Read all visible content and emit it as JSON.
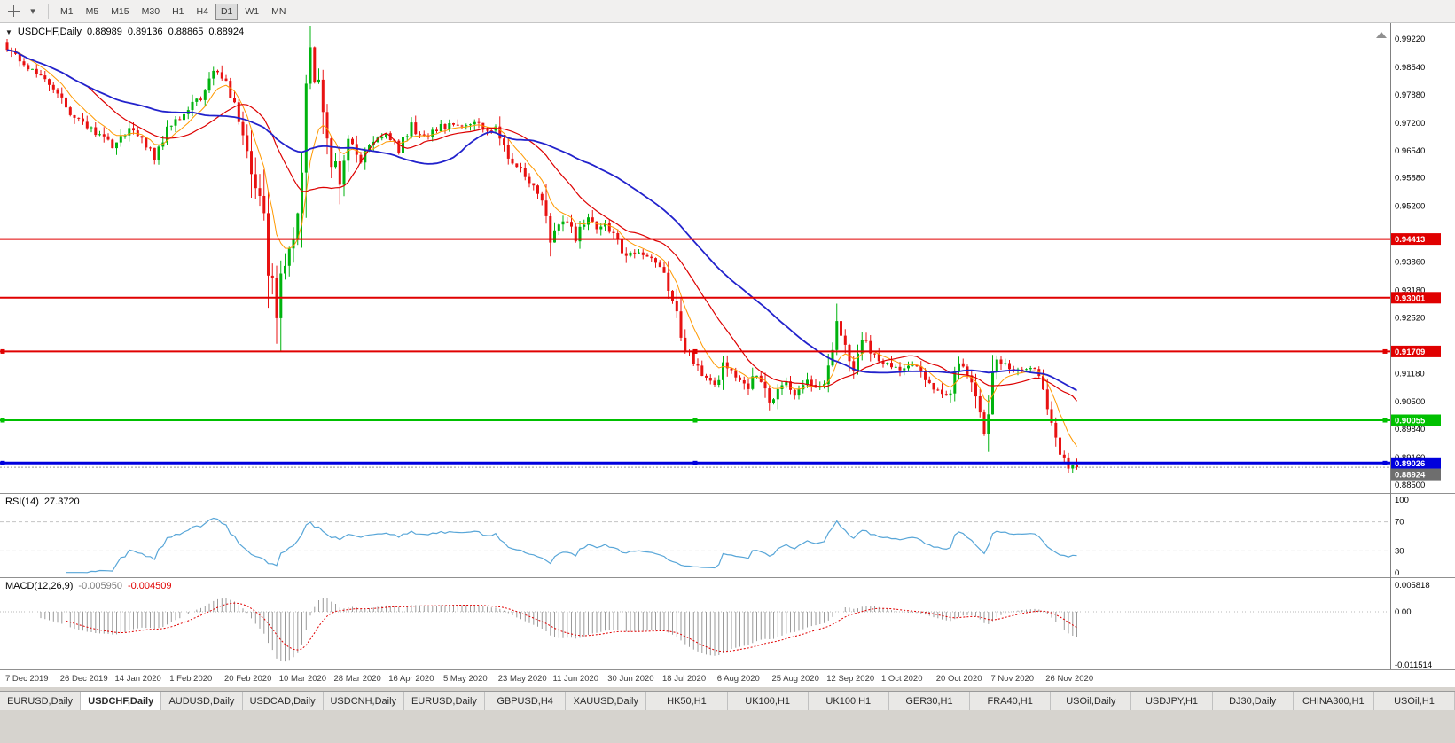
{
  "toolbar": {
    "icons": [
      {
        "name": "crosshair-icon"
      },
      {
        "name": "dropdown-arrow-icon",
        "glyph": "▾"
      }
    ],
    "timeframes": [
      {
        "label": "M1",
        "active": false
      },
      {
        "label": "M5",
        "active": false
      },
      {
        "label": "M15",
        "active": false
      },
      {
        "label": "M30",
        "active": false
      },
      {
        "label": "H1",
        "active": false
      },
      {
        "label": "H4",
        "active": false
      },
      {
        "label": "D1",
        "active": true
      },
      {
        "label": "W1",
        "active": false
      },
      {
        "label": "MN",
        "active": false
      }
    ]
  },
  "main_chart": {
    "collapse_icon": "▼",
    "scroll_icon": "▲",
    "title": {
      "symbol": "USDCHF,Daily",
      "open": "0.88989",
      "high": "0.89136",
      "low": "0.88865",
      "close": "0.88924"
    },
    "axis_ticks": [
      "0.99220",
      "0.98540",
      "0.97880",
      "0.97200",
      "0.96540",
      "0.95880",
      "0.95200",
      "0.93860",
      "0.93180",
      "0.92520",
      "0.91180",
      "0.90500",
      "0.89840",
      "0.89160",
      "0.88500"
    ],
    "current_badge": {
      "label": "0.88924",
      "color": "#6e6e6e"
    }
  },
  "rsi_panel": {
    "label": "RSI(14)",
    "value": "27.3720"
  },
  "macd_panel": {
    "label": "MACD(12,26,9)",
    "value1": "-0.005950",
    "value2": "-0.004509"
  },
  "chart_data": {
    "type": "candlestick",
    "symbol": "USDCHF",
    "timeframe": "Daily",
    "current_ohlc": {
      "open": 0.88989,
      "high": 0.89136,
      "low": 0.88865,
      "close": 0.88924
    },
    "x_axis_dates": [
      "7 Dec 2019",
      "26 Dec 2019",
      "14 Jan 2020",
      "1 Feb 2020",
      "20 Feb 2020",
      "10 Mar 2020",
      "28 Mar 2020",
      "16 Apr 2020",
      "5 May 2020",
      "23 May 2020",
      "11 Jun 2020",
      "30 Jun 2020",
      "18 Jul 2020",
      "6 Aug 2020",
      "25 Aug 2020",
      "12 Sep 2020",
      "1 Oct 2020",
      "20 Oct 2020",
      "7 Nov 2020",
      "26 Nov 2020"
    ],
    "candles_per_label": 13,
    "price_path": [
      [
        0,
        0.9915
      ],
      [
        3,
        0.9878
      ],
      [
        6,
        0.9852
      ],
      [
        9,
        0.9838
      ],
      [
        13,
        0.9792
      ],
      [
        17,
        0.9732
      ],
      [
        21,
        0.9705
      ],
      [
        26,
        0.9668
      ],
      [
        30,
        0.9706
      ],
      [
        33,
        0.9682
      ],
      [
        36,
        0.9638
      ],
      [
        39,
        0.9705
      ],
      [
        43,
        0.9745
      ],
      [
        47,
        0.9782
      ],
      [
        50,
        0.984
      ],
      [
        52,
        0.9832
      ],
      [
        55,
        0.9775
      ],
      [
        58,
        0.9645
      ],
      [
        61,
        0.9525
      ],
      [
        64,
        0.9335
      ],
      [
        65,
        0.9255
      ],
      [
        67,
        0.939
      ],
      [
        69,
        0.9465
      ],
      [
        71,
        0.963
      ],
      [
        72,
        0.9825
      ],
      [
        73,
        0.9895
      ],
      [
        74,
        0.9845
      ],
      [
        76,
        0.9762
      ],
      [
        78,
        0.9645
      ],
      [
        80,
        0.9585
      ],
      [
        82,
        0.9678
      ],
      [
        85,
        0.9628
      ],
      [
        88,
        0.9678
      ],
      [
        91,
        0.969
      ],
      [
        94,
        0.9657
      ],
      [
        97,
        0.9713
      ],
      [
        100,
        0.9682
      ],
      [
        104,
        0.971
      ],
      [
        108,
        0.972
      ],
      [
        112,
        0.9724
      ],
      [
        115,
        0.9701
      ],
      [
        117,
        0.9706
      ],
      [
        120,
        0.9642
      ],
      [
        123,
        0.9606
      ],
      [
        126,
        0.9572
      ],
      [
        128,
        0.9522
      ],
      [
        130,
        0.9432
      ],
      [
        133,
        0.9494
      ],
      [
        136,
        0.9442
      ],
      [
        139,
        0.9494
      ],
      [
        141,
        0.9466
      ],
      [
        143,
        0.948
      ],
      [
        146,
        0.9441
      ],
      [
        148,
        0.9396
      ],
      [
        151,
        0.9416
      ],
      [
        154,
        0.9391
      ],
      [
        156,
        0.9381
      ],
      [
        158,
        0.9312
      ],
      [
        160,
        0.9252
      ],
      [
        162,
        0.9182
      ],
      [
        164,
        0.9152
      ],
      [
        166,
        0.9116
      ],
      [
        169,
        0.9096
      ],
      [
        171,
        0.9131
      ],
      [
        174,
        0.9111
      ],
      [
        177,
        0.9086
      ],
      [
        179,
        0.9121
      ],
      [
        182,
        0.9041
      ],
      [
        184,
        0.9086
      ],
      [
        186,
        0.9106
      ],
      [
        188,
        0.9061
      ],
      [
        191,
        0.9101
      ],
      [
        193,
        0.9081
      ],
      [
        195,
        0.9091
      ],
      [
        197,
        0.9181
      ],
      [
        198,
        0.9246
      ],
      [
        200,
        0.9171
      ],
      [
        202,
        0.9131
      ],
      [
        204,
        0.9201
      ],
      [
        206,
        0.9171
      ],
      [
        208,
        0.9156
      ],
      [
        211,
        0.9131
      ],
      [
        214,
        0.9126
      ],
      [
        217,
        0.9141
      ],
      [
        219,
        0.9111
      ],
      [
        221,
        0.9086
      ],
      [
        223,
        0.9061
      ],
      [
        225,
        0.9076
      ],
      [
        227,
        0.9146
      ],
      [
        229,
        0.9116
      ],
      [
        231,
        0.9061
      ],
      [
        233,
        0.8986
      ],
      [
        234,
        0.9041
      ],
      [
        236,
        0.9151
      ],
      [
        238,
        0.9141
      ],
      [
        239,
        0.9136
      ],
      [
        242,
        0.9121
      ],
      [
        244,
        0.9136
      ],
      [
        246,
        0.9111
      ],
      [
        247,
        0.9081
      ],
      [
        249,
        0.9011
      ],
      [
        251,
        0.8921
      ],
      [
        253,
        0.8896
      ],
      [
        254,
        0.8892
      ],
      [
        255,
        0.8892
      ]
    ],
    "special_points": {
      "0": {
        "high": 0.9922
      },
      "65": {
        "low": 0.9172
      },
      "73": {
        "high": 0.9904
      }
    },
    "hlines": [
      {
        "price": 0.94413,
        "label": "0.94413",
        "color": "#e00000",
        "width": 2,
        "selected": false
      },
      {
        "price": 0.93001,
        "label": "0.93001",
        "color": "#e00000",
        "width": 2,
        "selected": false
      },
      {
        "price": 0.91709,
        "label": "0.91709",
        "color": "#e00000",
        "width": 2,
        "selected": true
      },
      {
        "price": 0.90055,
        "label": "0.90055",
        "color": "#00c000",
        "width": 2,
        "selected": true
      },
      {
        "price": 0.89026,
        "label": "0.89026",
        "color": "#0000dd",
        "width": 3,
        "selected": true
      }
    ],
    "moving_averages": [
      {
        "period": 8,
        "type": "ema",
        "color": "#ff9900",
        "width": 1
      },
      {
        "period": 20,
        "type": "sma",
        "color": "#dd0000",
        "width": 1.2
      },
      {
        "period": 45,
        "type": "sma",
        "color": "#2222cc",
        "width": 1.8
      }
    ],
    "rsi": {
      "period": 14,
      "current": 27.372,
      "levels": [
        100,
        70,
        30,
        0
      ]
    },
    "macd": {
      "fast": 12,
      "slow": 26,
      "signal": 9,
      "current": [
        -0.00595,
        -0.004509
      ],
      "axis_labels": [
        "0.005818",
        "0.00",
        "-0.011514"
      ]
    }
  },
  "tabs": [
    {
      "label": "EURUSD,Daily",
      "active": false
    },
    {
      "label": "USDCHF,Daily",
      "active": true
    },
    {
      "label": "AUDUSD,Daily",
      "active": false
    },
    {
      "label": "USDCAD,Daily",
      "active": false
    },
    {
      "label": "USDCNH,Daily",
      "active": false
    },
    {
      "label": "EURUSD,Daily",
      "active": false
    },
    {
      "label": "GBPUSD,H4",
      "active": false
    },
    {
      "label": "XAUUSD,Daily",
      "active": false
    },
    {
      "label": "HK50,H1",
      "active": false
    },
    {
      "label": "UK100,H1",
      "active": false
    },
    {
      "label": "UK100,H1",
      "active": false
    },
    {
      "label": "GER30,H1",
      "active": false
    },
    {
      "label": "FRA40,H1",
      "active": false
    },
    {
      "label": "USOil,Daily",
      "active": false
    },
    {
      "label": "USDJPY,H1",
      "active": false
    },
    {
      "label": "DJ30,Daily",
      "active": false
    },
    {
      "label": "CHINA300,H1",
      "active": false
    },
    {
      "label": "USOil,H1",
      "active": false
    }
  ],
  "colors": {
    "candle_up": "#00b30f",
    "candle_down": "#e81212",
    "rsi_line": "#58a6d8",
    "macd_bars": "#9a9a9a",
    "macd_signal": "#e00000",
    "bid_line": "#999999"
  }
}
